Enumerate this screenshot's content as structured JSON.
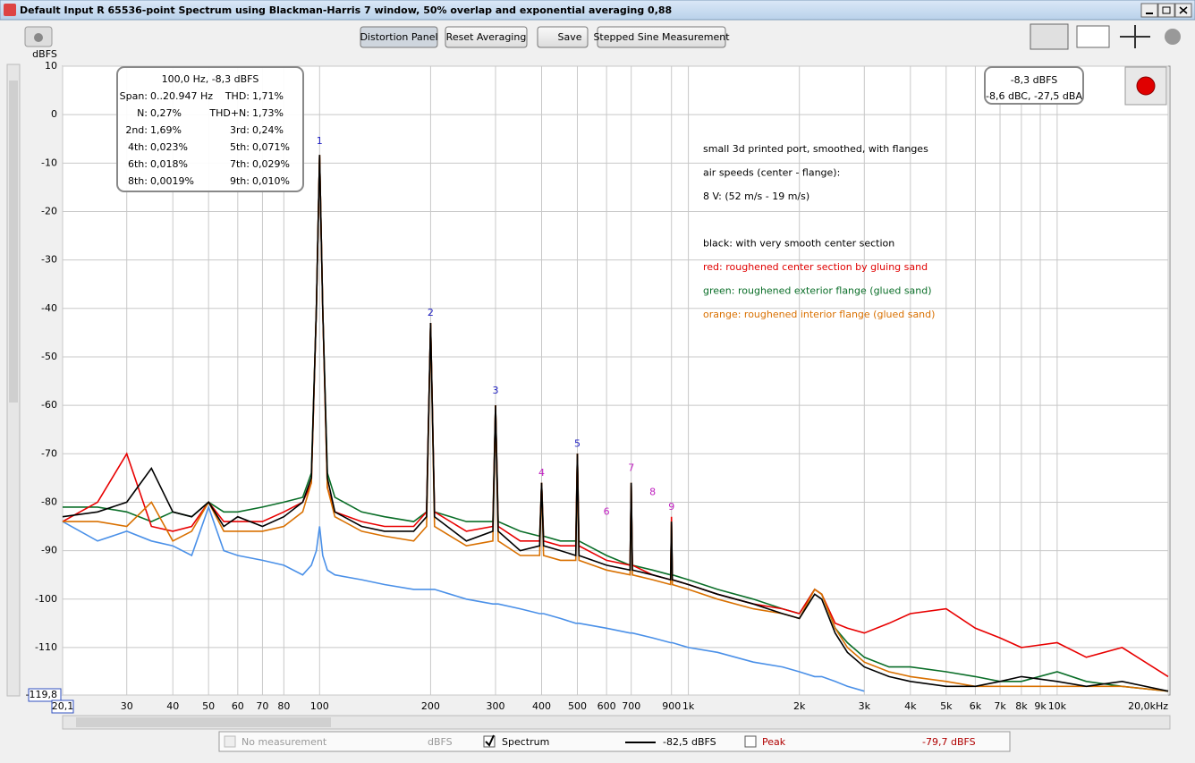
{
  "window_title": "Default Input R 65536-point Spectrum using Blackman-Harris 7 window, 50% overlap and exponential averaging 0,88",
  "toolbar": {
    "buttons": [
      "Distortion Panel",
      "Reset Averaging",
      "Save",
      "Stepped Sine Measurement"
    ]
  },
  "chart_data": {
    "type": "line",
    "x_scale": "log",
    "grid": true,
    "y_label": "dBFS",
    "xlim": [
      20.1,
      20000
    ],
    "ylim": [
      -119.8,
      10
    ],
    "xticks": [
      {
        "value": 20.1,
        "label": "20,1"
      },
      30,
      40,
      50,
      60,
      70,
      80,
      100,
      200,
      300,
      400,
      500,
      600,
      700,
      900,
      {
        "value": 1000,
        "label": "1k"
      },
      {
        "value": 2000,
        "label": "2k"
      },
      {
        "value": 3000,
        "label": "3k"
      },
      {
        "value": 4000,
        "label": "4k"
      },
      {
        "value": 5000,
        "label": "5k"
      },
      {
        "value": 6000,
        "label": "6k"
      },
      {
        "value": 7000,
        "label": "7k"
      },
      {
        "value": 8000,
        "label": "8k"
      },
      {
        "value": 9000,
        "label": "9k"
      },
      {
        "value": 10000,
        "label": "10k"
      },
      {
        "value": 20000,
        "label": "20,0kHz"
      }
    ],
    "yticks": [
      10,
      0,
      -10,
      -20,
      -30,
      -40,
      -50,
      -60,
      -70,
      -80,
      -90,
      -100,
      -110,
      {
        "value": -119.8,
        "label": "-119,8"
      }
    ],
    "x": [
      20.1,
      25,
      30,
      35,
      40,
      45,
      50,
      55,
      60,
      70,
      80,
      90,
      95,
      98,
      100,
      102,
      105,
      110,
      130,
      150,
      180,
      195,
      200,
      205,
      250,
      295,
      300,
      305,
      350,
      395,
      400,
      405,
      450,
      495,
      500,
      505,
      600,
      695,
      700,
      705,
      800,
      895,
      900,
      905,
      1000,
      1200,
      1500,
      1800,
      2000,
      2200,
      2300,
      2500,
      2700,
      3000,
      3500,
      4000,
      5000,
      6000,
      7000,
      8000,
      10000,
      12000,
      15000,
      20000
    ],
    "series": [
      {
        "color": "#4a90e8",
        "values": [
          -84,
          -88,
          -86,
          -88,
          -89,
          -91,
          -81,
          -90,
          -91,
          -92,
          -93,
          -95,
          -93,
          -90,
          -85,
          -91,
          -94,
          -95,
          -96,
          -97,
          -98,
          -98,
          -98,
          -98,
          -100,
          -101,
          -101,
          -101,
          -102,
          -103,
          -103,
          -103,
          -104,
          -105,
          -105,
          -105,
          -106,
          -107,
          -107,
          -107,
          -108,
          -109,
          -109,
          -109,
          -110,
          -111,
          -113,
          -114,
          -115,
          -116,
          -116,
          -117,
          -118,
          -119,
          null,
          null,
          null,
          null,
          null,
          null,
          null,
          null,
          null,
          null
        ]
      },
      {
        "color": "#0a6e28",
        "values": [
          -81,
          -81,
          -82,
          -84,
          -82,
          -83,
          -80,
          -82,
          -82,
          -81,
          -80,
          -79,
          -74,
          -40,
          -8.3,
          -40,
          -74,
          -79,
          -82,
          -83,
          -84,
          -82,
          -43,
          -82,
          -84,
          -84,
          -60,
          -84,
          -86,
          -87,
          -76,
          -87,
          -88,
          -88,
          -70,
          -88,
          -91,
          -93,
          -76,
          -93,
          -94,
          -95,
          -84,
          -95,
          -96,
          -98,
          -100,
          -102,
          -103,
          -98,
          -99,
          -106,
          -109,
          -112,
          -114,
          -114,
          -115,
          -116,
          -117,
          -117,
          -115,
          -117,
          -118,
          -119
        ]
      },
      {
        "color": "#e80000",
        "values": [
          -84,
          -80,
          -70,
          -85,
          -86,
          -85,
          -80,
          -84,
          -84,
          -84,
          -82,
          -80,
          -76,
          -40,
          -8.3,
          -40,
          -77,
          -82,
          -84,
          -85,
          -85,
          -82,
          -43,
          -82,
          -86,
          -85,
          -60,
          -85,
          -88,
          -88,
          -76,
          -88,
          -89,
          -89,
          -70,
          -89,
          -92,
          -93,
          -76,
          -93,
          -95,
          -96,
          -83,
          -96,
          -97,
          -99,
          -101,
          -102,
          -103,
          -98,
          -99,
          -105,
          -106,
          -107,
          -105,
          -103,
          -102,
          -106,
          -108,
          -110,
          -109,
          -112,
          -110,
          -116
        ]
      },
      {
        "color": "#d97000",
        "values": [
          -84,
          -84,
          -85,
          -80,
          -88,
          -86,
          -80,
          -86,
          -86,
          -86,
          -85,
          -82,
          -76,
          -40,
          -8.3,
          -40,
          -77,
          -83,
          -86,
          -87,
          -88,
          -85,
          -43,
          -85,
          -89,
          -88,
          -60,
          -88,
          -91,
          -91,
          -76,
          -91,
          -92,
          -92,
          -70,
          -92,
          -94,
          -95,
          -76,
          -95,
          -96,
          -97,
          -84,
          -97,
          -98,
          -100,
          -102,
          -103,
          -104,
          -98,
          -99,
          -106,
          -110,
          -113,
          -115,
          -116,
          -117,
          -118,
          -118,
          -118,
          -118,
          -118,
          -118,
          -119
        ]
      },
      {
        "color": "#000000",
        "values": [
          -83,
          -82,
          -80,
          -73,
          -82,
          -83,
          -80,
          -85,
          -83,
          -85,
          -83,
          -80,
          -75,
          -40,
          -8.3,
          -40,
          -75,
          -82,
          -85,
          -86,
          -86,
          -83,
          -43,
          -83,
          -88,
          -86,
          -60,
          -86,
          -90,
          -89,
          -76,
          -89,
          -90,
          -91,
          -70,
          -91,
          -93,
          -94,
          -76,
          -94,
          -95,
          -96,
          -84,
          -96,
          -97,
          -99,
          -101,
          -103,
          -104,
          -99,
          -100,
          -107,
          -111,
          -114,
          -116,
          -117,
          -118,
          -118,
          -117,
          -116,
          -117,
          -118,
          -117,
          -119
        ]
      }
    ],
    "harmonic_markers": [
      {
        "label": "1",
        "x": 100,
        "y": -5.5,
        "color": "#2020c0"
      },
      {
        "label": "2",
        "x": 200,
        "y": -41,
        "color": "#2020c0"
      },
      {
        "label": "3",
        "x": 300,
        "y": -57,
        "color": "#2020c0"
      },
      {
        "label": "4",
        "x": 400,
        "y": -74,
        "color": "#c020c0"
      },
      {
        "label": "5",
        "x": 500,
        "y": -68,
        "color": "#2020c0"
      },
      {
        "label": "6",
        "x": 600,
        "y": -82,
        "color": "#c020c0"
      },
      {
        "label": "7",
        "x": 700,
        "y": -73,
        "color": "#c020c0"
      },
      {
        "label": "8",
        "x": 800,
        "y": -78,
        "color": "#c020c0"
      },
      {
        "label": "9",
        "x": 900,
        "y": -81,
        "color": "#c020c0"
      }
    ]
  },
  "distortion_box": {
    "heading": "100,0 Hz, -8,3 dBFS",
    "rows": [
      [
        "Span:",
        "0..20.947 Hz",
        "THD:",
        "1,71%"
      ],
      [
        "N:",
        "0,27%",
        "THD+N:",
        "1,73%"
      ],
      [
        "2nd:",
        "1,69%",
        "3rd:",
        "0,24%"
      ],
      [
        "4th:",
        "0,023%",
        "5th:",
        "0,071%"
      ],
      [
        "6th:",
        "0,018%",
        "7th:",
        "0,029%"
      ],
      [
        "8th:",
        "0,0019%",
        "9th:",
        "0,010%"
      ]
    ]
  },
  "level_box": {
    "main": "-8,3 dBFS",
    "sub": "-8,6 dBC, -27,5 dBA"
  },
  "annotation_lines": [
    {
      "text": "small 3d printed port, smoothed, with flanges",
      "color": "#000000"
    },
    {
      "text": "air speeds (center - flange):",
      "color": "#000000"
    },
    {
      "text": "8 V: (52 m/s - 19 m/s)",
      "color": "#000000"
    },
    {
      "text": "black: with very smooth center section",
      "color": "#000000"
    },
    {
      "text": "red: roughened center section by gluing sand",
      "color": "#e00000"
    },
    {
      "text": "green: roughened exterior flange (glued sand)",
      "color": "#0a6e28"
    },
    {
      "text": "orange: roughened interior flange (glued sand)",
      "color": "#d97000"
    }
  ],
  "legend_bar": {
    "no_measurement": "No measurement",
    "unit": "dBFS",
    "spectrum": "Spectrum",
    "spectrum_level": "-82,5 dBFS",
    "peak": "Peak",
    "peak_level": "-79,7 dBFS"
  }
}
